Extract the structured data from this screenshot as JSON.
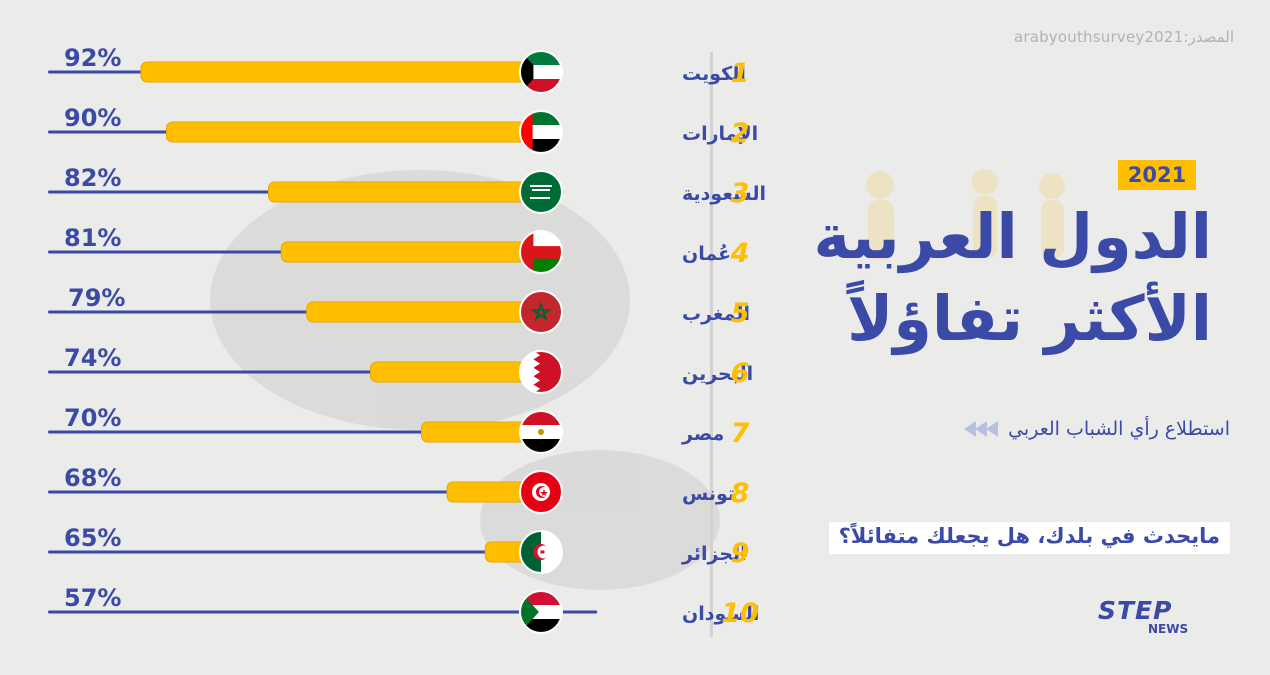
{
  "source": "المصدر:arabyouthsurvey2021",
  "year": "2021",
  "title_line1": "الدول العربية",
  "title_line2": "الأكثر تفاؤلاً",
  "subtitle": "استطلاع رأي الشباب العربي",
  "question": "مايحدث في بلدك، هل يجعلك متفائلاً؟",
  "logo": {
    "main": "STEP",
    "sub": "NEWS"
  },
  "colors": {
    "bar": "#ffbf00",
    "line": "#3a4aa6",
    "text": "#3a4aa6",
    "rank": "#ffbf00"
  },
  "chart_data": {
    "type": "bar",
    "orientation": "horizontal",
    "rows": [
      {
        "rank": "1",
        "country": "الكويت",
        "label": "92%",
        "value": 92,
        "flag": "kuwait"
      },
      {
        "rank": "2",
        "country": "الإمارات",
        "label": "90%",
        "value": 90,
        "flag": "uae"
      },
      {
        "rank": "3",
        "country": "السعودية",
        "label": "82%",
        "value": 82,
        "flag": "saudi"
      },
      {
        "rank": "4",
        "country": "عُمان",
        "label": "81%",
        "value": 81,
        "flag": "oman"
      },
      {
        "rank": "5",
        "country": "المغرب",
        "label": "79%",
        "value": 79,
        "flag": "morocco"
      },
      {
        "rank": "6",
        "country": "البحرين",
        "label": "74%",
        "value": 74,
        "flag": "bahrain"
      },
      {
        "rank": "7",
        "country": "مصر",
        "label": "70%",
        "value": 70,
        "flag": "egypt"
      },
      {
        "rank": "8",
        "country": "تونس",
        "label": "68%",
        "value": 68,
        "flag": "tunisia"
      },
      {
        "rank": "9",
        "country": "الجزائر",
        "label": "65%",
        "value": 65,
        "flag": "algeria"
      },
      {
        "rank": "10",
        "country": "السودان",
        "label": "57%",
        "value": 57,
        "flag": "sudan"
      }
    ]
  }
}
